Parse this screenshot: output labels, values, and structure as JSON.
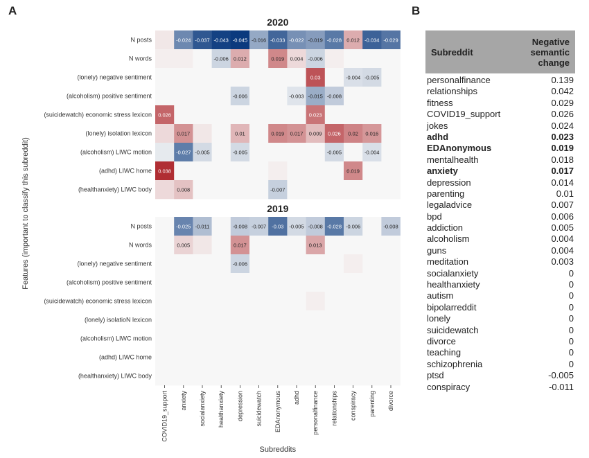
{
  "panel_labels": {
    "a": "A",
    "b": "B"
  },
  "chart_data": [
    {
      "type": "heatmap",
      "title": "2020",
      "xlabel": "Subreddits",
      "ylabel": "Features (important to classify this subreddit)",
      "columns": [
        "COVID19_support",
        "anxiety",
        "socialanxiety",
        "healthanxiety",
        "depression",
        "suicidewatch",
        "EDAnonymous",
        "adhd",
        "personalfinance",
        "relationships",
        "conspiracy",
        "parenting",
        "divorce"
      ],
      "rows": [
        "N posts",
        "N words",
        "(lonely)  negative sentiment",
        "(alcoholism)  positive sentiment",
        "(suicidewatch)  economic stress lexicon",
        "(lonely)  isolation lexicon",
        "(alcoholism)  LIWC motion",
        "(adhd)  LIWC home",
        "(healthanxiety)  LIWC body"
      ],
      "color_scale": {
        "min": -0.045,
        "max": 0.045,
        "negative": "#0b3a7e",
        "positive": "#a50f15",
        "neutral": "#f7f7f7"
      },
      "values": [
        [
          0.002,
          -0.024,
          -0.037,
          -0.043,
          -0.045,
          -0.016,
          -0.033,
          -0.022,
          -0.019,
          -0.028,
          0.012,
          -0.034,
          -0.029
        ],
        [
          0.001,
          0.001,
          0.0,
          -0.006,
          0.012,
          0.0,
          0.019,
          0.004,
          -0.006,
          0.001,
          0.0,
          0.0,
          0.0
        ],
        [
          0.0,
          0.0,
          0.0,
          0.0,
          0.0,
          0.0,
          0.0,
          0.0,
          0.03,
          0.0,
          -0.004,
          -0.005,
          0.0
        ],
        [
          0.0,
          0.0,
          0.0,
          0.0,
          -0.006,
          0.0,
          0.0,
          -0.003,
          -0.015,
          -0.008,
          0.0,
          0.0,
          0.0
        ],
        [
          0.026,
          0.0,
          0.0,
          0.0,
          0.0,
          0.0,
          0.0,
          0.0,
          0.023,
          0.0,
          0.0,
          0.0,
          0.0
        ],
        [
          0.004,
          0.017,
          0.002,
          0.0,
          0.01,
          0.0,
          0.019,
          0.017,
          0.009,
          0.026,
          0.02,
          0.016,
          0.0
        ],
        [
          -0.002,
          -0.027,
          -0.005,
          0.0,
          -0.005,
          0.0,
          0.0,
          0.0,
          0.0,
          -0.005,
          0.0,
          -0.004,
          0.0
        ],
        [
          0.038,
          0.0,
          0.0,
          0.0,
          0.0,
          0.0,
          0.001,
          0.0,
          0.0,
          0.0,
          0.019,
          0.0,
          0.0
        ],
        [
          0.004,
          0.008,
          0.0,
          0.0,
          0.0,
          0.0,
          -0.007,
          0.0,
          0.0,
          0.0,
          0.0,
          0.0,
          0.0
        ]
      ],
      "labels": [
        [
          null,
          "-0.024",
          "-0.037",
          "-0.043",
          "-0.045",
          "-0.016",
          "-0.033",
          "-0.022",
          "-0.019",
          "-0.028",
          "0.012",
          "-0.034",
          "-0.029"
        ],
        [
          null,
          null,
          null,
          "-0.006",
          "0.012",
          null,
          "0.019",
          "0.004",
          "-0.006",
          null,
          null,
          null,
          null
        ],
        [
          null,
          null,
          null,
          null,
          null,
          null,
          null,
          null,
          "0.03",
          null,
          "-0.004",
          "-0.005",
          null
        ],
        [
          null,
          null,
          null,
          null,
          "-0.006",
          null,
          null,
          "-0.003",
          "-0.015",
          "-0.008",
          null,
          null,
          null
        ],
        [
          "0.026",
          null,
          null,
          null,
          null,
          null,
          null,
          null,
          "0.023",
          null,
          null,
          null,
          null
        ],
        [
          null,
          "0.017",
          null,
          null,
          "0.01",
          null,
          "0.019",
          "0.017",
          "0.009",
          "0.026",
          "0.02",
          "0.016",
          null
        ],
        [
          null,
          "-0.027",
          "-0.005",
          null,
          "-0.005",
          null,
          null,
          null,
          null,
          "-0.005",
          null,
          "-0.004",
          null
        ],
        [
          "0.038",
          null,
          null,
          null,
          null,
          null,
          null,
          null,
          null,
          null,
          "0.019",
          null,
          null
        ],
        [
          null,
          "0.008",
          null,
          null,
          null,
          null,
          "-0.007",
          null,
          null,
          null,
          null,
          null,
          null
        ]
      ]
    },
    {
      "type": "heatmap",
      "title": "2019",
      "xlabel": "Subreddits",
      "ylabel": "Features (important to classify this subreddit)",
      "columns": [
        "COVID19_support",
        "anxiety",
        "socialanxiety",
        "healthanxiety",
        "depression",
        "suicidewatch",
        "EDAnonymous",
        "adhd",
        "personalfinance",
        "relationships",
        "conspiracy",
        "parenting",
        "divorce"
      ],
      "rows": [
        "N posts",
        "N words",
        "(lonely)  negative sentiment",
        "(alcoholism)  positive sentiment",
        "(suicidewatch)  economic stress lexicon",
        "(lonely)  isolatioN lexicon",
        "(alcoholism)  LIWC motion",
        "(adhd)  LIWC home",
        "(healthanxiety)  LIWC body"
      ],
      "color_scale": {
        "min": -0.045,
        "max": 0.045,
        "negative": "#0b3a7e",
        "positive": "#a50f15",
        "neutral": "#f7f7f7"
      },
      "values": [
        [
          0.0,
          -0.025,
          -0.011,
          0.0,
          -0.008,
          -0.007,
          -0.03,
          -0.005,
          -0.008,
          -0.028,
          -0.006,
          0.0,
          -0.008
        ],
        [
          0.0,
          0.005,
          0.002,
          0.0,
          0.017,
          0.0,
          0.0,
          0.0,
          0.013,
          0.0,
          0.0,
          0.0,
          0.0
        ],
        [
          0.0,
          0.0,
          0.0,
          0.0,
          -0.006,
          0.0,
          0.0,
          0.0,
          0.0,
          0.0,
          0.001,
          0.0,
          0.0
        ],
        [
          0.0,
          0.0,
          0.0,
          0.0,
          0.0,
          0.0,
          0.0,
          0.0,
          0.0,
          0.0,
          0.0,
          0.0,
          0.0
        ],
        [
          0.0,
          0.0,
          0.0,
          0.0,
          0.0,
          0.0,
          0.0,
          0.0,
          0.001,
          0.0,
          0.0,
          0.0,
          0.0
        ],
        [
          0.0,
          0.0,
          0.0,
          0.0,
          0.0,
          0.0,
          0.0,
          0.0,
          0.0,
          0.0,
          0.0,
          0.0,
          0.0
        ],
        [
          0.0,
          0.0,
          0.0,
          0.0,
          0.0,
          0.0,
          0.0,
          0.0,
          0.0,
          0.0,
          0.0,
          0.0,
          0.0
        ],
        [
          0.0,
          0.0,
          0.0,
          0.0,
          0.0,
          0.0,
          0.0,
          0.0,
          0.0,
          0.0,
          0.0,
          0.0,
          0.0
        ],
        [
          0.0,
          0.0,
          0.0,
          0.0,
          0.0,
          0.0,
          0.0,
          0.0,
          0.0,
          0.0,
          0.0,
          0.0,
          0.0
        ]
      ],
      "labels": [
        [
          null,
          "-0.025",
          "-0.011",
          null,
          "-0.008",
          "-0.007",
          "-0.03",
          "-0.005",
          "-0.008",
          "-0.028",
          "-0.006",
          null,
          "-0.008"
        ],
        [
          null,
          "0.005",
          null,
          null,
          "0.017",
          null,
          null,
          null,
          "0.013",
          null,
          null,
          null,
          null
        ],
        [
          null,
          null,
          null,
          null,
          "-0.006",
          null,
          null,
          null,
          null,
          null,
          null,
          null,
          null
        ],
        [
          null,
          null,
          null,
          null,
          null,
          null,
          null,
          null,
          null,
          null,
          null,
          null,
          null
        ],
        [
          null,
          null,
          null,
          null,
          null,
          null,
          null,
          null,
          null,
          null,
          null,
          null,
          null
        ],
        [
          null,
          null,
          null,
          null,
          null,
          null,
          null,
          null,
          null,
          null,
          null,
          null,
          null
        ],
        [
          null,
          null,
          null,
          null,
          null,
          null,
          null,
          null,
          null,
          null,
          null,
          null,
          null
        ],
        [
          null,
          null,
          null,
          null,
          null,
          null,
          null,
          null,
          null,
          null,
          null,
          null,
          null
        ],
        [
          null,
          null,
          null,
          null,
          null,
          null,
          null,
          null,
          null,
          null,
          null,
          null,
          null
        ]
      ]
    },
    {
      "type": "table",
      "columns": [
        "Subreddit",
        "Negative\nsemantic\nchange"
      ],
      "rows": [
        {
          "name": "personalfinance",
          "value": "0.139",
          "bold": false
        },
        {
          "name": "relationships",
          "value": "0.042",
          "bold": false
        },
        {
          "name": "fitness",
          "value": "0.029",
          "bold": false
        },
        {
          "name": "COVID19_support",
          "value": "0.026",
          "bold": false
        },
        {
          "name": "jokes",
          "value": "0.024",
          "bold": false
        },
        {
          "name": "adhd",
          "value": "0.023",
          "bold": true
        },
        {
          "name": "EDAnonymous",
          "value": "0.019",
          "bold": true
        },
        {
          "name": "mentalhealth",
          "value": "0.018",
          "bold": false
        },
        {
          "name": "anxiety",
          "value": "0.017",
          "bold": true
        },
        {
          "name": "depression",
          "value": "0.014",
          "bold": false
        },
        {
          "name": "parenting",
          "value": "0.01",
          "bold": false
        },
        {
          "name": "legaladvice",
          "value": "0.007",
          "bold": false
        },
        {
          "name": "bpd",
          "value": "0.006",
          "bold": false
        },
        {
          "name": "addiction",
          "value": "0.005",
          "bold": false
        },
        {
          "name": "alcoholism",
          "value": "0.004",
          "bold": false
        },
        {
          "name": "guns",
          "value": "0.004",
          "bold": false
        },
        {
          "name": "meditation",
          "value": "0.003",
          "bold": false
        },
        {
          "name": "socialanxiety",
          "value": "0",
          "bold": false
        },
        {
          "name": "healthanxiety",
          "value": "0",
          "bold": false
        },
        {
          "name": "autism",
          "value": "0",
          "bold": false
        },
        {
          "name": "bipolarreddit",
          "value": "0",
          "bold": false
        },
        {
          "name": "lonely",
          "value": "0",
          "bold": false
        },
        {
          "name": "suicidewatch",
          "value": "0",
          "bold": false
        },
        {
          "name": "divorce",
          "value": "0",
          "bold": false
        },
        {
          "name": "teaching",
          "value": "0",
          "bold": false
        },
        {
          "name": "schizophrenia",
          "value": "0",
          "bold": false
        },
        {
          "name": "ptsd",
          "value": "-0.005",
          "bold": false
        },
        {
          "name": "conspiracy",
          "value": "-0.011",
          "bold": false
        }
      ]
    }
  ]
}
